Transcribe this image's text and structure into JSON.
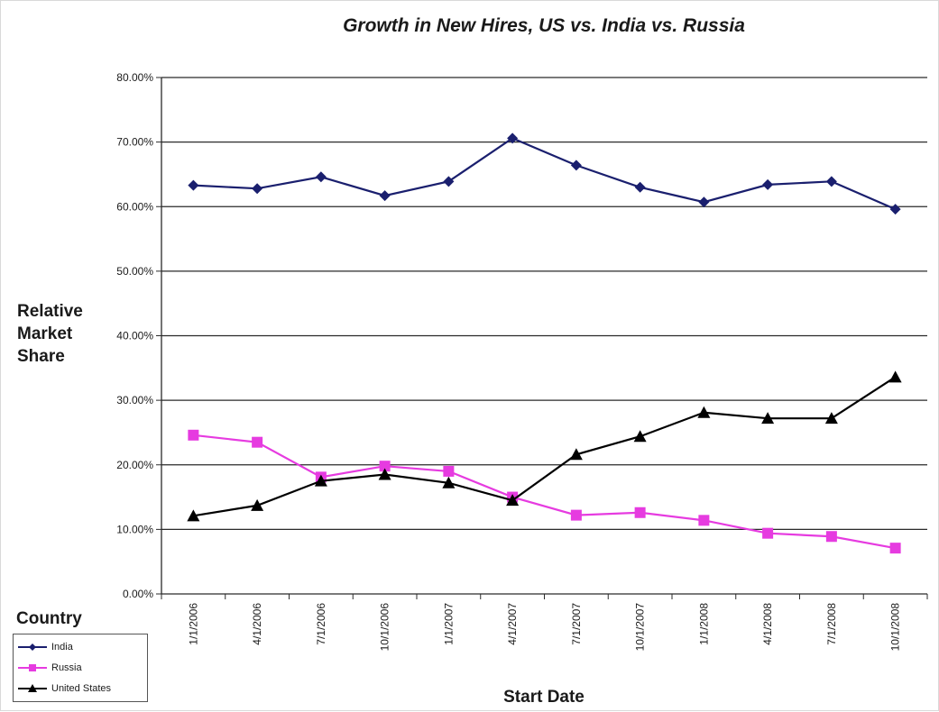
{
  "chart_data": {
    "type": "line",
    "title": "Growth in New Hires, US vs. India vs. Russia",
    "xlabel": "Start Date",
    "ylabel": [
      "Relative",
      "Market",
      "Share"
    ],
    "ylim": [
      0,
      0.8
    ],
    "yticks": [
      "0.00%",
      "10.00%",
      "20.00%",
      "30.00%",
      "40.00%",
      "50.00%",
      "60.00%",
      "70.00%",
      "80.00%"
    ],
    "categories": [
      "1/1/2006",
      "4/1/2006",
      "7/1/2006",
      "10/1/2006",
      "1/1/2007",
      "4/1/2007",
      "7/1/2007",
      "10/1/2007",
      "1/1/2008",
      "4/1/2008",
      "7/1/2008",
      "10/1/2008"
    ],
    "grid": true,
    "legend_title": "Country",
    "legend_position": "bottom-left",
    "series": [
      {
        "name": "India",
        "color": "#1a1f6e",
        "marker": "diamond",
        "values": [
          0.633,
          0.628,
          0.646,
          0.617,
          0.639,
          0.706,
          0.664,
          0.63,
          0.607,
          0.634,
          0.639,
          0.596
        ]
      },
      {
        "name": "Russia",
        "color": "#e63be0",
        "marker": "square",
        "values": [
          0.246,
          0.235,
          0.181,
          0.198,
          0.19,
          0.15,
          0.122,
          0.126,
          0.114,
          0.094,
          0.089,
          0.071
        ]
      },
      {
        "name": "United States",
        "color": "#000000",
        "marker": "triangle",
        "values": [
          0.121,
          0.137,
          0.175,
          0.185,
          0.172,
          0.145,
          0.216,
          0.244,
          0.281,
          0.272,
          0.272,
          0.336
        ]
      }
    ]
  }
}
